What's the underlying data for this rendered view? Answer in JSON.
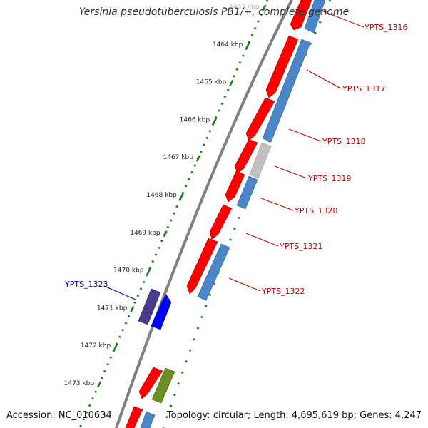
{
  "title": "Yersinia pseudotuberculosis PB1/+, complete genome",
  "footer": {
    "accession": "Accession: NC_010634",
    "summary": "Topology: circular; Length: 4,695,619 bp; Genes: 4,247"
  },
  "colors": {
    "backbone": "#808080",
    "tick": "#1a7f1a",
    "cds_forward": "#ff0000",
    "cds_reverse": "#4a86c8",
    "pseudo": "#c0c0c0",
    "label_red": "#cc0000",
    "label_blue": "#0000cc",
    "purple": "#4b3a8c",
    "blue": "#0000ff",
    "olive": "#6b8e23"
  },
  "scale_ticks": [
    {
      "kbp": 1463,
      "label": "1463 kbp"
    },
    {
      "kbp": 1464,
      "label": "1464 kbp"
    },
    {
      "kbp": 1465,
      "label": "1465 kbp"
    },
    {
      "kbp": 1466,
      "label": "1466 kbp"
    },
    {
      "kbp": 1467,
      "label": "1467 kbp"
    },
    {
      "kbp": 1468,
      "label": "1468 kbp"
    },
    {
      "kbp": 1469,
      "label": "1469 kbp"
    },
    {
      "kbp": 1470,
      "label": "1470 kbp"
    },
    {
      "kbp": 1471,
      "label": "1471 kbp"
    },
    {
      "kbp": 1472,
      "label": "1472 kbp"
    },
    {
      "kbp": 1473,
      "label": "1473 kbp"
    }
  ],
  "gene_labels": [
    {
      "id": "YPTS_1316",
      "kbp": 1463.3
    },
    {
      "id": "YPTS_1317",
      "kbp": 1464.5
    },
    {
      "id": "YPTS_1318",
      "kbp": 1465.6
    },
    {
      "id": "YPTS_1319",
      "kbp": 1466.6
    },
    {
      "id": "YPTS_1320",
      "kbp": 1467.5
    },
    {
      "id": "YPTS_1321",
      "kbp": 1468.4
    },
    {
      "id": "YPTS_1322",
      "kbp": 1469.2
    },
    {
      "id": "YPTS_1323",
      "kbp": 1470.6
    }
  ]
}
